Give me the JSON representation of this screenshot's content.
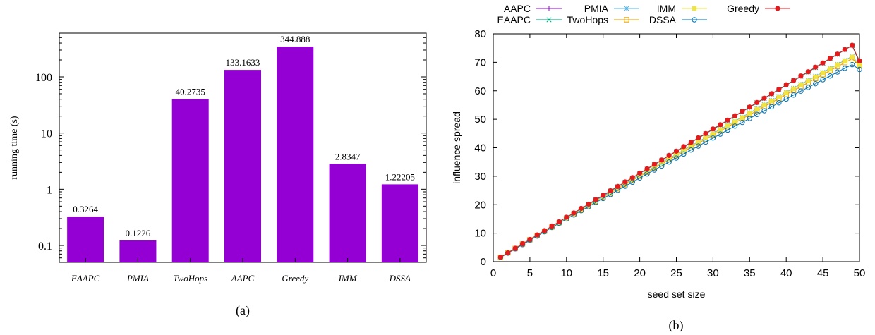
{
  "chart_data": [
    {
      "type": "bar",
      "ylabel": "running time (s)",
      "yscale": "log",
      "ylim": [
        0.05,
        600
      ],
      "yticks": [
        "0.1",
        "1",
        "10",
        "100"
      ],
      "categories": [
        "EAAPC",
        "PMIA",
        "TwoHops",
        "AAPC",
        "Greedy",
        "IMM",
        "DSSA"
      ],
      "values": [
        0.3264,
        0.1226,
        40.2735,
        133.1633,
        344.888,
        2.8347,
        1.22205
      ],
      "value_labels": [
        "0.3264",
        "0.1226",
        "40.2735",
        "133.1633",
        "344.888",
        "2.8347",
        "1.22205"
      ],
      "bar_color": "#9400d3",
      "caption": "(a)"
    },
    {
      "type": "line",
      "xlabel": "seed set size",
      "ylabel": "influence spread",
      "xlim": [
        0,
        50
      ],
      "ylim": [
        0,
        80
      ],
      "xticks": [
        "0",
        "5",
        "10",
        "15",
        "20",
        "25",
        "30",
        "35",
        "40",
        "45",
        "50"
      ],
      "yticks": [
        "0",
        "10",
        "20",
        "30",
        "40",
        "50",
        "60",
        "70",
        "80"
      ],
      "legend_position": "top",
      "x": [
        1,
        2,
        3,
        4,
        5,
        6,
        7,
        8,
        9,
        10,
        11,
        12,
        13,
        14,
        15,
        16,
        17,
        18,
        19,
        20,
        21,
        22,
        23,
        24,
        25,
        26,
        27,
        28,
        29,
        30,
        31,
        32,
        33,
        34,
        35,
        36,
        37,
        38,
        39,
        40,
        41,
        42,
        43,
        44,
        45,
        46,
        47,
        48,
        49,
        50
      ],
      "series": [
        {
          "name": "AAPC",
          "color": "#9400d3",
          "marker": "plus",
          "values": [
            1.5,
            3.1,
            4.6,
            6.2,
            7.7,
            9.3,
            10.8,
            12.4,
            13.9,
            15.5,
            17.0,
            18.6,
            20.1,
            21.7,
            23.2,
            24.8,
            26.3,
            27.9,
            29.4,
            31.0,
            32.5,
            34.1,
            35.6,
            37.2,
            38.7,
            40.3,
            41.8,
            43.4,
            44.9,
            46.5,
            48.0,
            49.6,
            51.1,
            52.7,
            54.2,
            55.8,
            57.3,
            58.9,
            60.4,
            62.0,
            63.5,
            65.1,
            66.6,
            68.2,
            69.7,
            71.3,
            72.8,
            74.4,
            75.9,
            70.0
          ]
        },
        {
          "name": "EAAPC",
          "color": "#009e73",
          "marker": "cross",
          "values": [
            1.5,
            3.1,
            4.6,
            6.2,
            7.7,
            9.3,
            10.8,
            12.4,
            13.9,
            15.5,
            17.0,
            18.6,
            20.1,
            21.7,
            23.2,
            24.8,
            26.3,
            27.9,
            29.4,
            31.0,
            32.5,
            34.1,
            35.6,
            37.2,
            38.7,
            40.3,
            41.8,
            43.4,
            44.9,
            46.5,
            48.0,
            49.6,
            51.1,
            52.7,
            54.2,
            55.8,
            57.3,
            58.9,
            60.4,
            62.0,
            63.5,
            65.1,
            66.6,
            68.2,
            69.7,
            71.3,
            72.8,
            74.4,
            75.9,
            70.0
          ]
        },
        {
          "name": "PMIA",
          "color": "#56b4e9",
          "marker": "star",
          "values": [
            1.5,
            3.1,
            4.6,
            6.2,
            7.7,
            9.3,
            10.8,
            12.4,
            13.9,
            15.4,
            16.9,
            18.4,
            19.9,
            21.4,
            22.9,
            24.4,
            25.9,
            27.4,
            28.9,
            30.4,
            31.8,
            33.3,
            34.8,
            36.3,
            37.7,
            39.2,
            40.7,
            42.1,
            43.6,
            45.0,
            46.5,
            47.9,
            49.4,
            50.8,
            52.3,
            53.7,
            55.2,
            56.6,
            58.0,
            59.5,
            60.9,
            62.3,
            63.7,
            65.1,
            66.5,
            67.9,
            69.3,
            70.7,
            72.1,
            69.2
          ]
        },
        {
          "name": "TwoHops",
          "color": "#e69f00",
          "marker": "square-open",
          "values": [
            1.5,
            3.1,
            4.6,
            6.2,
            7.7,
            9.2,
            10.7,
            12.2,
            13.7,
            15.2,
            16.7,
            18.2,
            19.7,
            21.1,
            22.6,
            24.1,
            25.6,
            27.0,
            28.5,
            30.0,
            31.4,
            32.9,
            34.3,
            35.8,
            37.2,
            38.7,
            40.1,
            41.6,
            43.0,
            44.5,
            45.9,
            47.3,
            48.8,
            50.2,
            51.6,
            53.0,
            54.5,
            55.9,
            57.3,
            58.7,
            60.1,
            61.5,
            62.9,
            64.3,
            65.7,
            67.1,
            68.5,
            69.9,
            71.3,
            68.8
          ]
        },
        {
          "name": "IMM",
          "color": "#f0e442",
          "marker": "square",
          "values": [
            1.5,
            3.1,
            4.6,
            6.2,
            7.7,
            9.2,
            10.7,
            12.2,
            13.7,
            15.2,
            16.7,
            18.2,
            19.7,
            21.2,
            22.7,
            24.2,
            25.7,
            27.2,
            28.7,
            30.2,
            31.6,
            33.1,
            34.6,
            36.1,
            37.5,
            39.0,
            40.5,
            41.9,
            43.4,
            44.8,
            46.3,
            47.7,
            49.2,
            50.6,
            52.1,
            53.5,
            55.0,
            56.4,
            57.8,
            59.3,
            60.7,
            62.1,
            63.5,
            64.9,
            66.3,
            67.7,
            69.1,
            70.5,
            71.9,
            69.0
          ]
        },
        {
          "name": "DSSA",
          "color": "#0072b2",
          "marker": "circle-open",
          "values": [
            1.5,
            3.0,
            4.5,
            6.0,
            7.5,
            9.0,
            10.5,
            12.0,
            13.5,
            15.0,
            16.4,
            17.9,
            19.3,
            20.8,
            22.2,
            23.6,
            25.1,
            26.5,
            27.9,
            29.4,
            30.8,
            32.2,
            33.6,
            35.0,
            36.4,
            37.8,
            39.2,
            40.6,
            42.0,
            43.4,
            44.8,
            46.2,
            47.6,
            48.9,
            50.3,
            51.7,
            53.0,
            54.4,
            55.8,
            57.1,
            58.5,
            59.9,
            61.2,
            62.5,
            63.9,
            65.2,
            66.6,
            67.9,
            69.2,
            67.5
          ]
        },
        {
          "name": "Greedy",
          "color": "#e41a1c",
          "marker": "circle",
          "values": [
            1.6,
            3.1,
            4.7,
            6.3,
            7.8,
            9.4,
            10.9,
            12.5,
            14.0,
            15.6,
            17.1,
            18.7,
            20.2,
            21.8,
            23.3,
            24.9,
            26.4,
            28.0,
            29.5,
            31.1,
            32.6,
            34.2,
            35.7,
            37.3,
            38.8,
            40.4,
            41.9,
            43.5,
            45.0,
            46.6,
            48.1,
            49.7,
            51.2,
            52.8,
            54.3,
            55.9,
            57.4,
            59.0,
            60.5,
            62.1,
            63.6,
            65.2,
            66.7,
            68.3,
            69.8,
            71.4,
            72.9,
            74.5,
            76.0,
            70.5
          ]
        }
      ],
      "caption": "(b)"
    }
  ]
}
